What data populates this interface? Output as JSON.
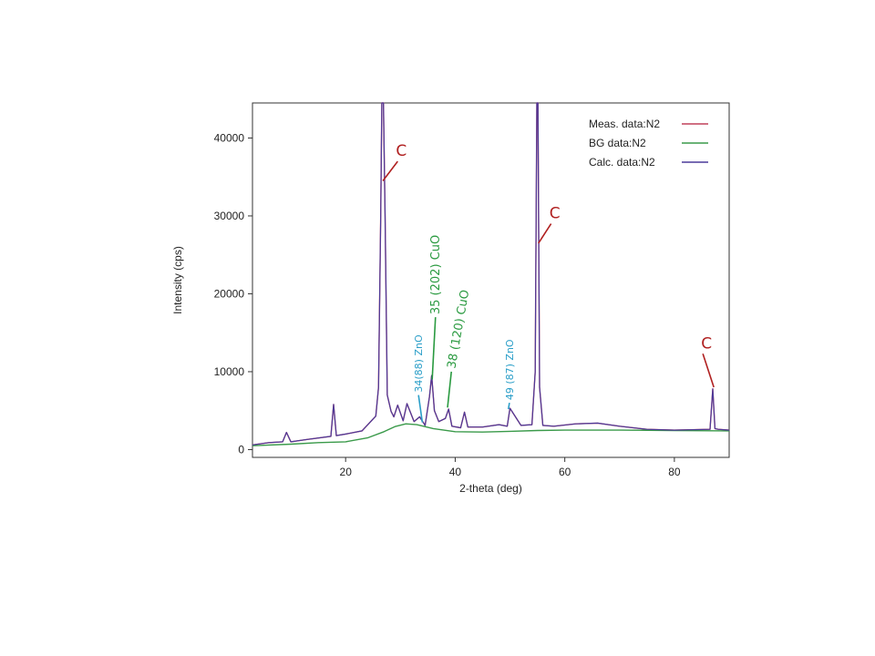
{
  "chart_data": {
    "type": "line",
    "title": "",
    "xlabel": "2-theta (deg)",
    "ylabel": "Intensity (cps)",
    "xlim": [
      3,
      90
    ],
    "ylim": [
      -1000,
      44500
    ],
    "xticks": [
      20,
      40,
      60,
      80
    ],
    "yticks": [
      0,
      10000,
      20000,
      30000,
      40000
    ],
    "grid": false,
    "legend": {
      "position": "top-right",
      "entries": [
        {
          "label": "Meas. data:N2",
          "color": "#c0405a"
        },
        {
          "label": "BG data:N2",
          "color": "#3a9a4a"
        },
        {
          "label": "Calc. data:N2",
          "color": "#4b3a9a"
        }
      ]
    },
    "series": [
      {
        "name": "Meas. data:N2",
        "color": "#c0405a",
        "x": [
          3,
          6,
          8.5,
          9.2,
          10,
          13,
          17.3,
          17.8,
          18.3,
          20,
          23,
          25.5,
          26,
          26.4,
          26.6,
          26.9,
          27.2,
          27.6,
          28.3,
          28.8,
          29.5,
          30.5,
          31.2,
          32.5,
          33.5,
          34.5,
          35.3,
          35.7,
          36.2,
          37,
          38.2,
          38.8,
          39.4,
          41,
          41.7,
          42.3,
          45,
          48,
          49.5,
          50,
          52,
          54,
          54.6,
          54.9,
          55.1,
          55.4,
          56,
          58,
          62,
          66,
          70,
          75,
          80,
          86.5,
          87,
          87.4,
          88,
          90
        ],
        "y": [
          600,
          900,
          1000,
          2200,
          1000,
          1300,
          1700,
          5800,
          1800,
          2000,
          2400,
          4300,
          8000,
          30000,
          44500,
          44500,
          30000,
          7000,
          4900,
          4200,
          5700,
          3700,
          5900,
          3600,
          4200,
          3100,
          6800,
          9500,
          5000,
          3600,
          4000,
          5200,
          3000,
          2800,
          4800,
          2900,
          2900,
          3200,
          3000,
          5300,
          3100,
          3200,
          10000,
          44500,
          44500,
          8000,
          3100,
          3000,
          3300,
          3400,
          3000,
          2600,
          2500,
          2600,
          7800,
          2700,
          2600,
          2500
        ]
      },
      {
        "name": "BG data:N2",
        "color": "#3a9a4a",
        "x": [
          3,
          10,
          15,
          20,
          24,
          27,
          29,
          31,
          33,
          36,
          40,
          45,
          50,
          55,
          60,
          70,
          80,
          90
        ],
        "y": [
          500,
          700,
          900,
          1000,
          1500,
          2300,
          2950,
          3300,
          3200,
          2700,
          2300,
          2250,
          2350,
          2450,
          2500,
          2500,
          2450,
          2400
        ]
      },
      {
        "name": "Calc. data:N2",
        "color": "#4b3a9a",
        "x": [
          3,
          6,
          8.5,
          9.2,
          10,
          13,
          17.3,
          17.8,
          18.3,
          20,
          23,
          25.5,
          26,
          26.4,
          26.6,
          26.9,
          27.2,
          27.6,
          28.3,
          28.8,
          29.5,
          30.5,
          31.2,
          32.5,
          33.5,
          34.5,
          35.3,
          35.7,
          36.2,
          37,
          38.2,
          38.8,
          39.4,
          41,
          41.7,
          42.3,
          45,
          48,
          49.5,
          50,
          52,
          54,
          54.6,
          54.9,
          55.1,
          55.4,
          56,
          58,
          62,
          66,
          70,
          75,
          80,
          86.5,
          87,
          87.4,
          88,
          90
        ],
        "y": [
          600,
          900,
          1000,
          2200,
          1000,
          1300,
          1700,
          5800,
          1800,
          2000,
          2400,
          4300,
          8000,
          30000,
          44500,
          44500,
          30000,
          7000,
          4900,
          4200,
          5700,
          3700,
          5900,
          3600,
          4200,
          3100,
          6800,
          9500,
          5000,
          3600,
          4000,
          5200,
          3000,
          2800,
          4800,
          2900,
          2900,
          3200,
          3000,
          5300,
          3100,
          3200,
          10000,
          44500,
          44500,
          8000,
          3100,
          3000,
          3300,
          3400,
          3000,
          2600,
          2500,
          2600,
          7800,
          2700,
          2600,
          2500
        ]
      }
    ],
    "annotations": [
      {
        "text": "C",
        "color": "#b02020",
        "peak_x": 26.8,
        "peak_y": 34500,
        "label_x": 29.5,
        "label_y": 37000,
        "rotate": 0,
        "size": 17
      },
      {
        "text": "C",
        "color": "#b02020",
        "peak_x": 55.2,
        "peak_y": 26500,
        "label_x": 57.5,
        "label_y": 29000,
        "rotate": 0,
        "size": 17
      },
      {
        "text": "C",
        "color": "#b02020",
        "peak_x": 87.2,
        "peak_y": 8000,
        "label_x": 85.2,
        "label_y": 12300,
        "rotate": 0,
        "size": 17
      },
      {
        "text": "34(88) ZnO",
        "color": "#2a9ec8",
        "peak_x": 34.0,
        "peak_y": 3500,
        "label_x": 33.3,
        "label_y": 7000,
        "rotate": -90,
        "size": 11
      },
      {
        "text": "35 (202) CuO",
        "color": "#2a9a40",
        "peak_x": 35.8,
        "peak_y": 9000,
        "label_x": 36.4,
        "label_y": 17000,
        "rotate": -90,
        "size": 13
      },
      {
        "text": "38 (120)  CuO",
        "color": "#2a9a40",
        "peak_x": 38.6,
        "peak_y": 5400,
        "label_x": 39.3,
        "label_y": 10000,
        "rotate": -80,
        "size": 13
      },
      {
        "text": "49 (87) ZnO",
        "color": "#2a9ec8",
        "peak_x": 49.7,
        "peak_y": 5200,
        "label_x": 49.9,
        "label_y": 6000,
        "rotate": -90,
        "size": 11
      }
    ]
  }
}
